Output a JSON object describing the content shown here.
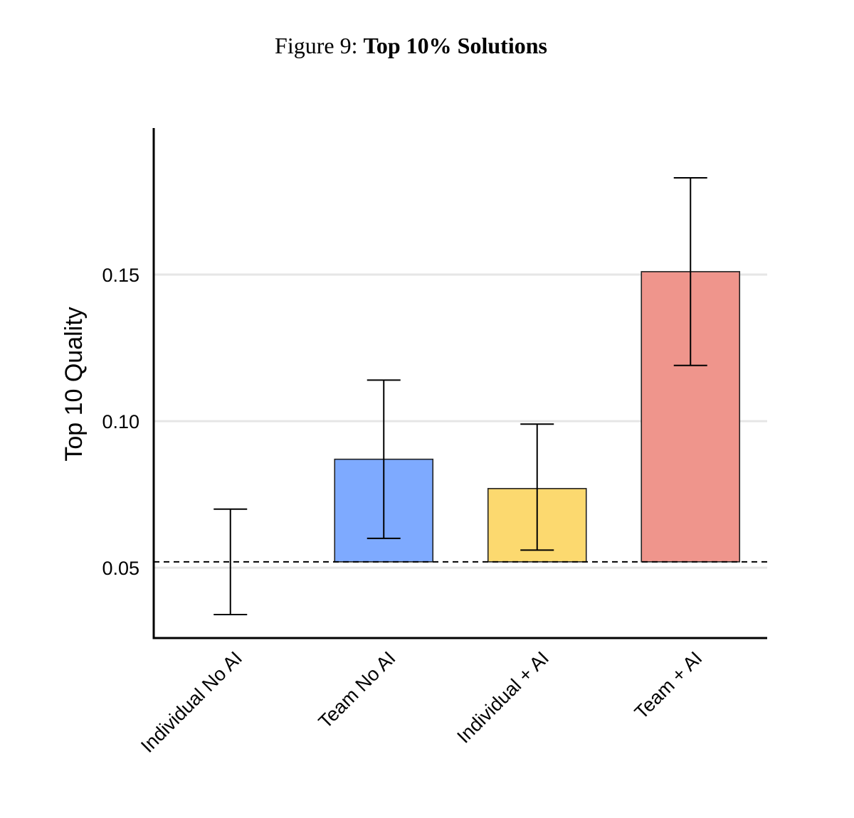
{
  "figure": {
    "prefix": "Figure 9:",
    "title": "Top 10% Solutions"
  },
  "chart_data": {
    "type": "bar",
    "ylabel": "Top 10 Quality",
    "xlabel": "",
    "ylim": [
      0.026,
      0.2
    ],
    "yticks": [
      0.05,
      0.1,
      0.15
    ],
    "ytick_labels": [
      "0.05",
      "0.10",
      "0.15"
    ],
    "grid": "horizontal",
    "baseline": 0.052,
    "baseline_style": "dashed",
    "categories": [
      "Individual No AI",
      "Team No AI",
      "Individual + AI",
      "Team + AI"
    ],
    "values": [
      0.052,
      0.087,
      0.077,
      0.151
    ],
    "error_low": [
      0.034,
      0.06,
      0.056,
      0.119
    ],
    "error_high": [
      0.07,
      0.114,
      0.099,
      0.183
    ],
    "colors": [
      "#ffffff",
      "#7eaaff",
      "#fcd96f",
      "#ef958c"
    ]
  }
}
